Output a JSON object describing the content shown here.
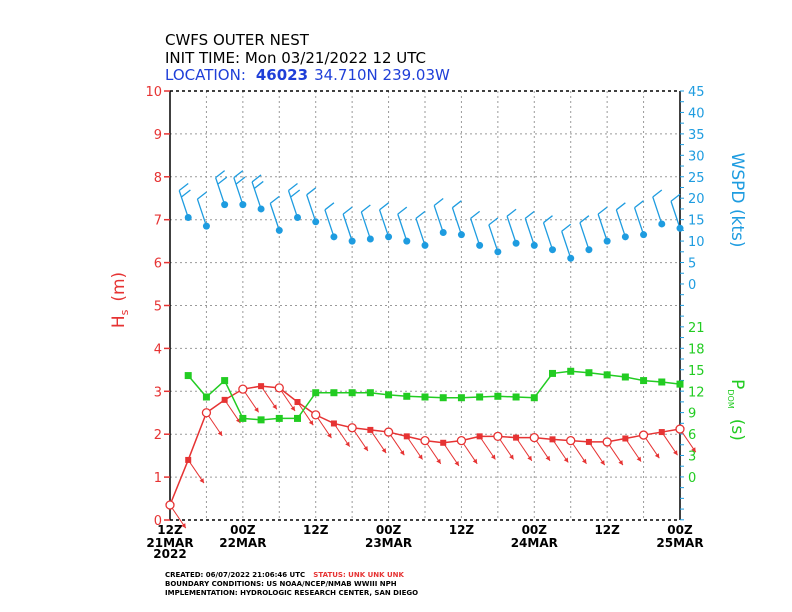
{
  "header": {
    "line1": "CWFS OUTER NEST",
    "line2": "INIT TIME: Mon 03/21/2022 12 UTC",
    "location_label": "LOCATION:",
    "station_id": "46023",
    "coords": "34.710N  239.03W"
  },
  "footer": {
    "created": "CREATED: 06/07/2022 21:06:46 UTC",
    "status": "STATUS: UNK UNK UNK",
    "boundary": "BOUNDARY CONDITIONS: US NOAA/NCEP/NMAB WWIII NPH",
    "implementation": "IMPLEMENTATION: HYDROLOGIC RESEARCH CENTER, SAN DIEGO"
  },
  "colors": {
    "hs": "#e63333",
    "wspd": "#1e9ce0",
    "pdom": "#22cc22",
    "grid": "#9a9a9a"
  },
  "chart_data": {
    "type": "line",
    "title": "CWFS OUTER NEST",
    "x_unit": "hours since 2022-03-21 12Z",
    "x_range": [
      0,
      84
    ],
    "x_ticks": [
      {
        "x": 0,
        "time": "12Z",
        "date": "21MAR",
        "year": "2022"
      },
      {
        "x": 12,
        "time": "00Z",
        "date": "22MAR",
        "year": ""
      },
      {
        "x": 24,
        "time": "12Z",
        "date": "",
        "year": ""
      },
      {
        "x": 36,
        "time": "00Z",
        "date": "23MAR",
        "year": ""
      },
      {
        "x": 48,
        "time": "12Z",
        "date": "",
        "year": ""
      },
      {
        "x": 60,
        "time": "00Z",
        "date": "24MAR",
        "year": ""
      },
      {
        "x": 72,
        "time": "12Z",
        "date": "",
        "year": ""
      },
      {
        "x": 84,
        "time": "00Z",
        "date": "25MAR",
        "year": ""
      }
    ],
    "hs_axis": {
      "label_main": "H",
      "label_sub": "s",
      "label_unit": "(m)",
      "range": [
        0,
        10
      ],
      "ticks": [
        "0",
        "1",
        "2",
        "3",
        "4",
        "5",
        "6",
        "7",
        "8",
        "9",
        "10"
      ]
    },
    "wspd_axis": {
      "label": "WSPD (kts)",
      "range": [
        0,
        45
      ],
      "ticks": [
        "45",
        "40",
        "35",
        "30",
        "25",
        "20",
        "15",
        "10",
        "5",
        "0"
      ]
    },
    "pdom_axis": {
      "label_main": "P",
      "label_sub": "DOM",
      "label_unit": "(s)",
      "range": [
        0,
        21
      ],
      "ticks": [
        "21",
        "18",
        "15",
        "12",
        "9",
        "6",
        "3",
        "0"
      ]
    },
    "series": [
      {
        "name": "Hs",
        "unit": "m",
        "x": [
          0,
          3,
          6,
          9,
          12,
          15,
          18,
          21,
          24,
          27,
          30,
          33,
          36,
          39,
          42,
          45,
          48,
          51,
          54,
          57,
          60,
          63,
          66,
          69,
          72,
          75,
          78,
          81,
          84
        ],
        "values": [
          0.35,
          1.4,
          2.5,
          2.8,
          3.05,
          3.12,
          3.08,
          2.75,
          2.45,
          2.25,
          2.15,
          2.1,
          2.05,
          1.95,
          1.85,
          1.8,
          1.85,
          1.95,
          1.95,
          1.92,
          1.92,
          1.88,
          1.85,
          1.82,
          1.82,
          1.9,
          1.98,
          2.05,
          2.12
        ],
        "direction_deg": [
          300,
          300,
          300,
          300,
          300,
          300,
          300,
          300,
          300,
          300,
          300,
          300,
          300,
          300,
          300,
          300,
          300,
          300,
          300,
          300,
          300,
          300,
          300,
          300,
          300,
          300,
          300,
          300,
          300
        ]
      },
      {
        "name": "WSPD",
        "unit": "kts",
        "x": [
          3,
          6,
          9,
          12,
          15,
          18,
          21,
          24,
          27,
          30,
          33,
          36,
          39,
          42,
          45,
          48,
          51,
          54,
          57,
          60,
          63,
          66,
          69,
          72,
          75,
          78,
          81,
          84
        ],
        "values": [
          15.5,
          13.5,
          18.5,
          18.5,
          17.5,
          12.5,
          15.5,
          14.5,
          11,
          10,
          10.5,
          11,
          10,
          9,
          12,
          11.5,
          9,
          7.5,
          9.5,
          9,
          8,
          6,
          8,
          10,
          11,
          11.5,
          14,
          13
        ]
      },
      {
        "name": "PDOM",
        "unit": "s",
        "x": [
          3,
          6,
          9,
          12,
          15,
          18,
          21,
          24,
          27,
          30,
          33,
          36,
          39,
          42,
          45,
          48,
          51,
          54,
          57,
          60,
          63,
          66,
          69,
          72,
          75,
          78,
          81,
          84
        ],
        "values": [
          14.2,
          11.2,
          13.5,
          8.2,
          8,
          8.2,
          8.2,
          11.8,
          11.8,
          11.8,
          11.8,
          11.5,
          11.3,
          11.2,
          11.1,
          11.1,
          11.2,
          11.3,
          11.2,
          11.1,
          14.5,
          14.8,
          14.6,
          14.3,
          14,
          13.5,
          13.3,
          13
        ]
      }
    ]
  }
}
